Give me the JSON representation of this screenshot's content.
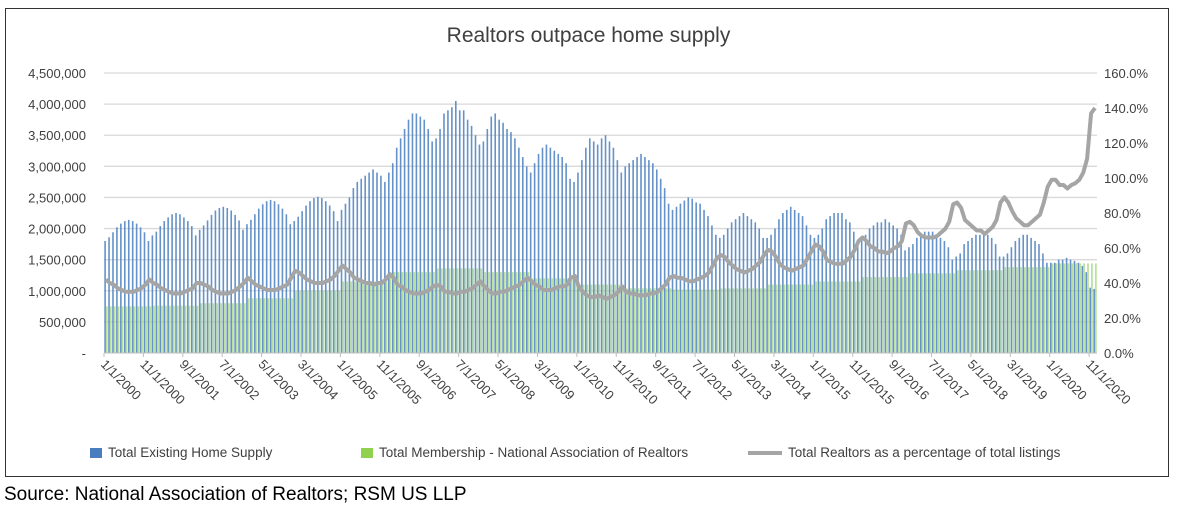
{
  "chart_data": {
    "type": "bar+line",
    "title": "Realtors outpace home supply",
    "frequency": "monthly",
    "x_range": [
      "1/1/2000",
      "12/1/2020"
    ],
    "x_tick_labels": [
      "1/1/2000",
      "11/1/2000",
      "9/1/2001",
      "7/1/2002",
      "5/1/2003",
      "3/1/2004",
      "1/1/2005",
      "11/1/2005",
      "9/1/2006",
      "7/1/2007",
      "5/1/2008",
      "3/1/2009",
      "1/1/2010",
      "11/1/2010",
      "9/1/2011",
      "7/1/2012",
      "5/1/2013",
      "3/1/2014",
      "1/1/2015",
      "11/1/2015",
      "9/1/2016",
      "7/1/2017",
      "5/1/2018",
      "3/1/2019",
      "1/1/2020",
      "11/1/2020"
    ],
    "y_left": {
      "range": [
        0,
        4500000
      ],
      "tick_labels": [
        "-",
        "500,000",
        "1,000,000",
        "1,500,000",
        "2,000,000",
        "2,500,000",
        "3,000,000",
        "3,500,000",
        "4,000,000",
        "4,500,000"
      ]
    },
    "y_right": {
      "range": [
        0,
        160
      ],
      "tick_labels": [
        "0.0%",
        "20.0%",
        "40.0%",
        "60.0%",
        "80.0%",
        "100.0%",
        "120.0%",
        "140.0%",
        "160.0%"
      ]
    },
    "grid": true,
    "legend_position": "bottom",
    "colors": {
      "supply": "#4a7fbf",
      "membership": "#a9d78a",
      "ratio": "#a5a5a5"
    },
    "series": [
      {
        "name": "Total Existing Home Supply",
        "type": "bar",
        "axis": "left",
        "values": [
          1800000,
          1860000,
          1940000,
          2020000,
          2080000,
          2120000,
          2140000,
          2120000,
          2080000,
          2020000,
          1940000,
          1800000,
          1890000,
          1950000,
          2040000,
          2120000,
          2180000,
          2230000,
          2250000,
          2230000,
          2180000,
          2120000,
          2040000,
          1890000,
          1980000,
          2050000,
          2130000,
          2220000,
          2290000,
          2330000,
          2350000,
          2330000,
          2290000,
          2220000,
          2130000,
          1980000,
          2070000,
          2140000,
          2230000,
          2320000,
          2390000,
          2440000,
          2460000,
          2440000,
          2390000,
          2320000,
          2230000,
          2070000,
          2120000,
          2190000,
          2280000,
          2370000,
          2440000,
          2490000,
          2510000,
          2490000,
          2440000,
          2370000,
          2280000,
          2120000,
          2300000,
          2400000,
          2500000,
          2650000,
          2750000,
          2800000,
          2850000,
          2900000,
          2950000,
          2900000,
          2850000,
          2750000,
          2900000,
          3050000,
          3300000,
          3450000,
          3600000,
          3750000,
          3850000,
          3850000,
          3800000,
          3750000,
          3600000,
          3400000,
          3450000,
          3600000,
          3850000,
          3900000,
          3950000,
          4050000,
          3900000,
          3900000,
          3750000,
          3650000,
          3500000,
          3350000,
          3400000,
          3600000,
          3800000,
          3850000,
          3750000,
          3700000,
          3600000,
          3550000,
          3450000,
          3300000,
          3150000,
          3000000,
          2900000,
          3050000,
          3200000,
          3300000,
          3350000,
          3300000,
          3250000,
          3200000,
          3150000,
          3050000,
          2800000,
          2750000,
          2900000,
          3100000,
          3300000,
          3450000,
          3400000,
          3350000,
          3450000,
          3500000,
          3400000,
          3300000,
          3100000,
          2900000,
          3000000,
          3050000,
          3100000,
          3150000,
          3200000,
          3150000,
          3100000,
          3050000,
          2950000,
          2800000,
          2650000,
          2400000,
          2300000,
          2350000,
          2400000,
          2450000,
          2500000,
          2480000,
          2420000,
          2400000,
          2300000,
          2200000,
          2050000,
          1900000,
          1850000,
          1900000,
          2000000,
          2100000,
          2150000,
          2200000,
          2250000,
          2200000,
          2150000,
          2100000,
          2000000,
          1850000,
          1850000,
          1900000,
          2000000,
          2150000,
          2250000,
          2300000,
          2350000,
          2300000,
          2250000,
          2200000,
          2050000,
          1900000,
          1850000,
          1900000,
          2000000,
          2150000,
          2200000,
          2250000,
          2250000,
          2250000,
          2150000,
          2100000,
          1950000,
          1800000,
          1850000,
          1900000,
          2000000,
          2050000,
          2100000,
          2100000,
          2150000,
          2100000,
          2050000,
          2000000,
          1900000,
          1650000,
          1700000,
          1750000,
          1850000,
          1900000,
          1950000,
          1950000,
          1950000,
          1900000,
          1850000,
          1800000,
          1700000,
          1500000,
          1550000,
          1600000,
          1750000,
          1800000,
          1850000,
          1900000,
          1900000,
          1950000,
          1900000,
          1850000,
          1750000,
          1550000,
          1550000,
          1600000,
          1700000,
          1800000,
          1850000,
          1900000,
          1900000,
          1850000,
          1800000,
          1750000,
          1600000,
          1450000,
          1450000,
          1450000,
          1500000,
          1500000,
          1530000,
          1500000,
          1480000,
          1450000,
          1400000,
          1300000,
          1050000,
          1030000
        ]
      },
      {
        "name": "Total Membership - National Association of Realtors",
        "type": "bar",
        "axis": "left",
        "values": [
          750000,
          750000,
          750000,
          750000,
          750000,
          750000,
          750000,
          750000,
          750000,
          750000,
          750000,
          750000,
          760000,
          760000,
          760000,
          760000,
          760000,
          760000,
          760000,
          760000,
          760000,
          760000,
          760000,
          760000,
          800000,
          800000,
          800000,
          800000,
          800000,
          800000,
          800000,
          800000,
          800000,
          800000,
          800000,
          800000,
          880000,
          880000,
          880000,
          880000,
          880000,
          880000,
          880000,
          880000,
          880000,
          880000,
          880000,
          880000,
          1000000,
          1000000,
          1000000,
          1000000,
          1000000,
          1000000,
          1000000,
          1000000,
          1000000,
          1000000,
          1000000,
          1000000,
          1150000,
          1150000,
          1150000,
          1150000,
          1150000,
          1150000,
          1150000,
          1150000,
          1150000,
          1150000,
          1150000,
          1150000,
          1300000,
          1300000,
          1300000,
          1300000,
          1300000,
          1300000,
          1300000,
          1300000,
          1300000,
          1300000,
          1300000,
          1300000,
          1360000,
          1360000,
          1360000,
          1360000,
          1360000,
          1360000,
          1360000,
          1360000,
          1360000,
          1360000,
          1360000,
          1360000,
          1300000,
          1300000,
          1300000,
          1300000,
          1300000,
          1300000,
          1300000,
          1300000,
          1300000,
          1300000,
          1300000,
          1300000,
          1200000,
          1200000,
          1200000,
          1200000,
          1200000,
          1200000,
          1200000,
          1200000,
          1200000,
          1200000,
          1200000,
          1200000,
          1100000,
          1100000,
          1100000,
          1100000,
          1100000,
          1100000,
          1100000,
          1100000,
          1100000,
          1100000,
          1100000,
          1100000,
          1040000,
          1040000,
          1040000,
          1040000,
          1040000,
          1040000,
          1040000,
          1040000,
          1040000,
          1040000,
          1040000,
          1040000,
          1020000,
          1020000,
          1020000,
          1020000,
          1020000,
          1020000,
          1020000,
          1020000,
          1020000,
          1020000,
          1020000,
          1020000,
          1040000,
          1040000,
          1040000,
          1040000,
          1040000,
          1040000,
          1040000,
          1040000,
          1040000,
          1040000,
          1040000,
          1040000,
          1100000,
          1100000,
          1100000,
          1100000,
          1100000,
          1100000,
          1100000,
          1100000,
          1100000,
          1100000,
          1100000,
          1100000,
          1150000,
          1150000,
          1150000,
          1150000,
          1150000,
          1150000,
          1150000,
          1150000,
          1150000,
          1150000,
          1150000,
          1150000,
          1220000,
          1220000,
          1220000,
          1220000,
          1220000,
          1220000,
          1220000,
          1220000,
          1220000,
          1220000,
          1220000,
          1220000,
          1280000,
          1280000,
          1280000,
          1280000,
          1280000,
          1280000,
          1280000,
          1280000,
          1280000,
          1280000,
          1280000,
          1280000,
          1330000,
          1330000,
          1330000,
          1330000,
          1330000,
          1330000,
          1330000,
          1330000,
          1330000,
          1330000,
          1330000,
          1330000,
          1380000,
          1380000,
          1380000,
          1380000,
          1380000,
          1380000,
          1380000,
          1380000,
          1380000,
          1380000,
          1380000,
          1380000,
          1440000,
          1440000,
          1440000,
          1440000,
          1440000,
          1440000,
          1440000,
          1440000,
          1440000,
          1440000,
          1440000,
          1440000
        ]
      },
      {
        "name": "Total Realtors as a percentage of total listings",
        "type": "line",
        "axis": "right",
        "values": [
          42,
          40,
          39,
          37,
          36,
          35,
          35,
          35,
          36,
          37,
          39,
          42,
          40,
          39,
          37,
          36,
          35,
          34,
          34,
          34,
          35,
          36,
          37,
          40,
          40,
          39,
          38,
          36,
          35,
          34,
          34,
          34,
          35,
          36,
          38,
          40,
          43,
          41,
          39,
          38,
          37,
          36,
          36,
          36,
          37,
          38,
          39,
          43,
          47,
          46,
          44,
          42,
          41,
          40,
          40,
          40,
          41,
          42,
          44,
          47,
          50,
          48,
          46,
          43,
          42,
          41,
          40,
          40,
          39,
          40,
          40,
          42,
          45,
          43,
          39,
          38,
          36,
          35,
          34,
          34,
          34,
          35,
          36,
          38,
          39,
          38,
          35,
          35,
          34,
          34,
          35,
          35,
          36,
          37,
          39,
          41,
          38,
          36,
          34,
          34,
          35,
          35,
          36,
          37,
          38,
          39,
          41,
          43,
          41,
          39,
          38,
          36,
          36,
          36,
          37,
          38,
          38,
          39,
          43,
          44,
          38,
          35,
          33,
          32,
          32,
          33,
          32,
          31,
          32,
          33,
          35,
          38,
          35,
          34,
          34,
          33,
          33,
          33,
          34,
          34,
          35,
          37,
          39,
          43,
          44,
          43,
          43,
          42,
          41,
          41,
          42,
          43,
          44,
          46,
          50,
          54,
          56,
          55,
          52,
          50,
          48,
          47,
          46,
          47,
          48,
          50,
          52,
          56,
          59,
          58,
          55,
          51,
          49,
          48,
          47,
          48,
          49,
          50,
          54,
          58,
          62,
          61,
          58,
          53,
          52,
          51,
          51,
          51,
          53,
          55,
          59,
          64,
          66,
          64,
          61,
          60,
          58,
          58,
          57,
          58,
          60,
          61,
          64,
          74,
          75,
          73,
          69,
          67,
          66,
          66,
          66,
          67,
          69,
          71,
          75,
          85,
          86,
          83,
          76,
          74,
          72,
          70,
          70,
          68,
          70,
          72,
          76,
          86,
          89,
          86,
          81,
          77,
          75,
          73,
          73,
          75,
          77,
          79,
          86,
          95,
          99,
          99,
          96,
          96,
          94,
          96,
          97,
          99,
          103,
          111,
          137,
          140
        ]
      }
    ]
  },
  "source": "Source: National Association of Realtors; RSM US LLP"
}
